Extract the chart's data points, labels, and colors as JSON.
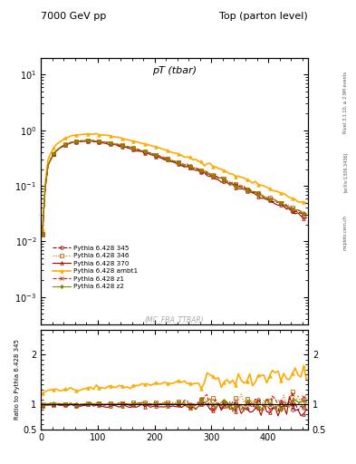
{
  "title_left": "7000 GeV pp",
  "title_right": "Top (parton level)",
  "plot_title": "pT (tbar)",
  "watermark": "(MC_FBA_TTBAR)",
  "rivet_text": "Rivet 3.1.10, ≥ 2.9M events",
  "arxiv_text": "[arXiv:1306.3436]",
  "mcplots_text": "mcplots.cern.ch",
  "ylabel_ratio": "Ratio to Pythia 6.428 345",
  "xlim": [
    0,
    470
  ],
  "ylim_main_log": [
    -3.5,
    1.3
  ],
  "ylim_ratio": [
    0.5,
    2.5
  ],
  "yticks_ratio": [
    0.5,
    1.0,
    2.0
  ],
  "ytick_labels_ratio": [
    "0.5",
    "1",
    "2"
  ],
  "series": [
    {
      "label": "Pythia 6.428 345",
      "color": "#990000",
      "marker": "o",
      "linestyle": "--",
      "linewidth": 0.8,
      "markersize": 2.5,
      "fillstyle": "none",
      "is_ref": true,
      "scale": 1.0,
      "decay": 80.0
    },
    {
      "label": "Pythia 6.428 346",
      "color": "#bb6600",
      "marker": "s",
      "linestyle": ":",
      "linewidth": 0.8,
      "markersize": 2.5,
      "fillstyle": "none",
      "is_ref": false,
      "scale": 1.005,
      "decay": 80.5
    },
    {
      "label": "Pythia 6.428 370",
      "color": "#aa0000",
      "marker": "^",
      "linestyle": "-",
      "linewidth": 0.8,
      "markersize": 2.5,
      "fillstyle": "none",
      "is_ref": false,
      "scale": 0.97,
      "decay": 79.0
    },
    {
      "label": "Pythia 6.428 ambt1",
      "color": "#ffaa00",
      "marker": "^",
      "linestyle": "-",
      "linewidth": 1.2,
      "markersize": 2.5,
      "fillstyle": "full",
      "is_ref": false,
      "scale": 1.32,
      "decay": 83.0
    },
    {
      "label": "Pythia 6.428 z1",
      "color": "#cc2200",
      "marker": "x",
      "linestyle": "--",
      "linewidth": 0.8,
      "markersize": 2.5,
      "fillstyle": "full",
      "is_ref": false,
      "scale": 1.0,
      "decay": 80.2
    },
    {
      "label": "Pythia 6.428 z2",
      "color": "#888800",
      "marker": "D",
      "linestyle": "-",
      "linewidth": 0.8,
      "markersize": 2.0,
      "fillstyle": "full",
      "is_ref": false,
      "scale": 1.0,
      "decay": 80.0
    }
  ]
}
